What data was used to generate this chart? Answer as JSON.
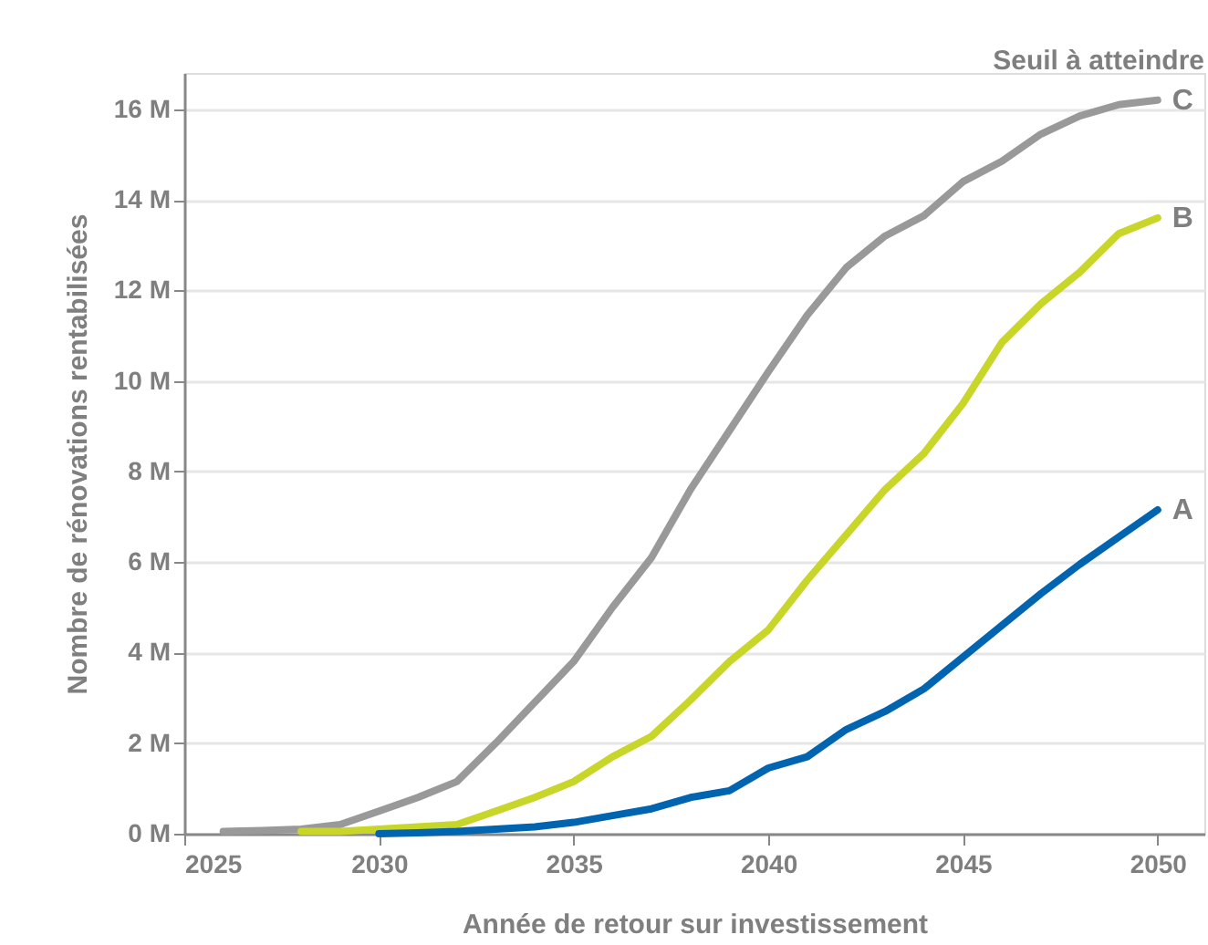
{
  "chart_data": {
    "type": "line",
    "xlabel": "Année de retour sur investissement",
    "ylabel": "Nombre de rénovations rentabilisées",
    "annotations": [
      "Seuil à atteindre"
    ],
    "x": [
      2026,
      2027,
      2028,
      2029,
      2030,
      2031,
      2032,
      2033,
      2034,
      2035,
      2036,
      2037,
      2038,
      2039,
      2040,
      2041,
      2042,
      2043,
      2044,
      2045,
      2046,
      2047,
      2048,
      2049,
      2050
    ],
    "series": [
      {
        "name": "C",
        "color": "#999999",
        "values": [
          0.05,
          0.07,
          0.1,
          0.2,
          0.5,
          0.8,
          1.15,
          2.0,
          2.9,
          3.8,
          5.0,
          6.1,
          7.6,
          8.9,
          10.2,
          11.45,
          12.5,
          13.2,
          13.65,
          14.4,
          14.85,
          15.45,
          15.85,
          16.1,
          16.2
        ]
      },
      {
        "name": "B",
        "color": "#c8d62a",
        "values": [
          null,
          null,
          0.05,
          0.05,
          0.1,
          0.15,
          0.2,
          0.5,
          0.8,
          1.15,
          1.7,
          2.15,
          2.95,
          3.8,
          4.5,
          5.6,
          6.6,
          7.6,
          8.4,
          9.5,
          10.85,
          11.7,
          12.4,
          13.25,
          13.6
        ]
      },
      {
        "name": "A",
        "color": "#0064b0",
        "values": [
          null,
          null,
          null,
          null,
          0.0,
          0.02,
          0.05,
          0.1,
          0.15,
          0.25,
          0.4,
          0.55,
          0.8,
          0.95,
          1.45,
          1.7,
          2.3,
          2.7,
          3.2,
          3.9,
          4.6,
          5.3,
          5.95,
          6.55,
          7.15
        ]
      }
    ],
    "xlim": [
      2025,
      2051.2
    ],
    "xticks": [
      2025,
      2030,
      2035,
      2040,
      2045,
      2050
    ],
    "ylim": [
      0,
      16.8
    ],
    "yticks": [
      {
        "value": 0,
        "label": "0 M"
      },
      {
        "value": 2,
        "label": "2 M"
      },
      {
        "value": 4,
        "label": "4 M"
      },
      {
        "value": 6,
        "label": "6 M"
      },
      {
        "value": 8,
        "label": "8 M"
      },
      {
        "value": 10,
        "label": "10 M"
      },
      {
        "value": 12,
        "label": "12 M"
      },
      {
        "value": 14,
        "label": "14 M"
      },
      {
        "value": 16,
        "label": "16 M"
      }
    ],
    "grid": "y",
    "legend": false,
    "line_style": "solid",
    "marker": "none"
  }
}
